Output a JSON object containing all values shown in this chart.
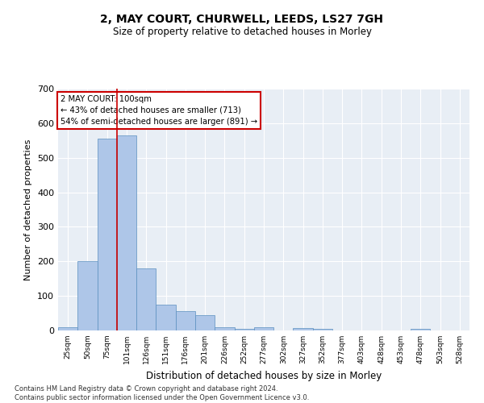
{
  "title": "2, MAY COURT, CHURWELL, LEEDS, LS27 7GH",
  "subtitle": "Size of property relative to detached houses in Morley",
  "xlabel": "Distribution of detached houses by size in Morley",
  "ylabel": "Number of detached properties",
  "footnote": "Contains HM Land Registry data © Crown copyright and database right 2024.\nContains public sector information licensed under the Open Government Licence v3.0.",
  "bin_labels": [
    "25sqm",
    "50sqm",
    "75sqm",
    "101sqm",
    "126sqm",
    "151sqm",
    "176sqm",
    "201sqm",
    "226sqm",
    "252sqm",
    "277sqm",
    "302sqm",
    "327sqm",
    "352sqm",
    "377sqm",
    "403sqm",
    "428sqm",
    "453sqm",
    "478sqm",
    "503sqm",
    "528sqm"
  ],
  "bar_values": [
    10,
    200,
    555,
    565,
    180,
    75,
    55,
    45,
    10,
    5,
    10,
    0,
    8,
    5,
    0,
    0,
    0,
    0,
    5,
    0,
    0
  ],
  "bar_color": "#aec6e8",
  "bar_edge_color": "#5a8fc0",
  "bg_color": "#e8eef5",
  "grid_color": "#ffffff",
  "vline_color": "#cc0000",
  "annotation_text": "2 MAY COURT: 100sqm\n← 43% of detached houses are smaller (713)\n54% of semi-detached houses are larger (891) →",
  "annotation_box_edge": "#cc0000",
  "ylim": [
    0,
    700
  ],
  "yticks": [
    0,
    100,
    200,
    300,
    400,
    500,
    600,
    700
  ]
}
